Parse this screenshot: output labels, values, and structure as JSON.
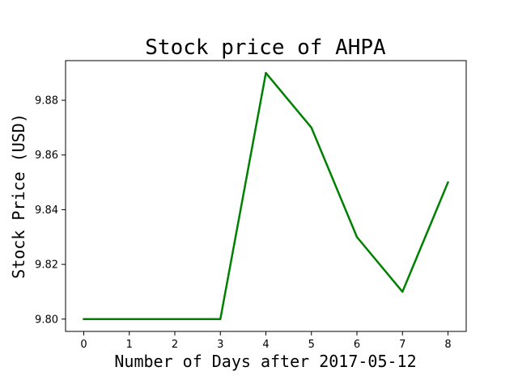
{
  "chart_data": {
    "type": "line",
    "title": "Stock price of AHPA",
    "xlabel": "Number of Days after 2017-05-12",
    "ylabel": "Stock Price (USD)",
    "x": [
      0,
      1,
      2,
      3,
      4,
      5,
      6,
      7,
      8
    ],
    "series": [
      {
        "name": "",
        "values": [
          9.8,
          9.8,
          9.8,
          9.8,
          9.89,
          9.87,
          9.83,
          9.81,
          9.85
        ],
        "color": "#008000"
      }
    ],
    "xlim": [
      -0.4,
      8.4
    ],
    "ylim": [
      9.7955,
      9.8945
    ],
    "xticks": [
      0,
      1,
      2,
      3,
      4,
      5,
      6,
      7,
      8
    ],
    "xtick_labels": [
      "0",
      "1",
      "2",
      "3",
      "4",
      "5",
      "6",
      "7",
      "8"
    ],
    "yticks": [
      9.8,
      9.82,
      9.84,
      9.86,
      9.88
    ],
    "ytick_labels": [
      "9.80",
      "9.82",
      "9.84",
      "9.86",
      "9.88"
    ],
    "grid": false,
    "legend": false
  }
}
